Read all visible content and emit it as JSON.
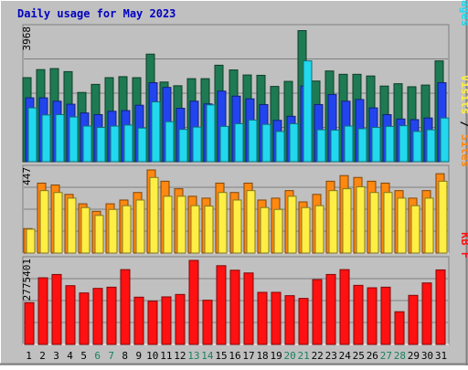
{
  "title": "Daily usage for May 2023",
  "chart_data": [
    {
      "type": "bar",
      "panel": "hits-files-pages",
      "max_label": "3968",
      "ylim": [
        0,
        3968
      ],
      "right_label": [
        "Pages",
        "/",
        "Files",
        "/",
        "Hits"
      ],
      "categories": [
        "1",
        "2",
        "3",
        "4",
        "5",
        "6",
        "7",
        "8",
        "9",
        "10",
        "11",
        "12",
        "13",
        "14",
        "15",
        "16",
        "17",
        "18",
        "19",
        "20",
        "21",
        "22",
        "23",
        "24",
        "25",
        "26",
        "27",
        "28",
        "29",
        "30",
        "31"
      ],
      "series": [
        {
          "name": "Hits",
          "color": "#1e7a52",
          "values": [
            2500,
            2740,
            2770,
            2680,
            2060,
            2300,
            2500,
            2530,
            2500,
            3200,
            2370,
            2260,
            2470,
            2470,
            2870,
            2730,
            2580,
            2570,
            2240,
            2390,
            3900,
            2400,
            2700,
            2600,
            2600,
            2550,
            2250,
            2320,
            2230,
            2280,
            3000
          ]
        },
        {
          "name": "Files",
          "color": "#2244ee",
          "values": [
            1900,
            1900,
            1800,
            1710,
            1450,
            1400,
            1500,
            1520,
            1680,
            2350,
            2210,
            1590,
            1800,
            1720,
            2100,
            1950,
            1870,
            1700,
            1230,
            1350,
            2250,
            1700,
            2000,
            1800,
            1850,
            1600,
            1400,
            1270,
            1250,
            1300,
            2350
          ]
        },
        {
          "name": "Pages",
          "color": "#22d8ee",
          "values": [
            1600,
            1390,
            1400,
            1330,
            1060,
            1020,
            1060,
            1090,
            1000,
            1780,
            1190,
            960,
            1030,
            1690,
            1050,
            1130,
            1240,
            1110,
            900,
            1130,
            3000,
            950,
            940,
            1060,
            980,
            1020,
            1050,
            1070,
            900,
            950,
            1300
          ]
        }
      ]
    },
    {
      "type": "bar",
      "panel": "visits-sites",
      "max_label": "447",
      "ylim": [
        0,
        447
      ],
      "right_label": [
        "Sites",
        "/",
        "Visits"
      ],
      "categories": [
        "1",
        "2",
        "3",
        "4",
        "5",
        "6",
        "7",
        "8",
        "9",
        "10",
        "11",
        "12",
        "13",
        "14",
        "15",
        "16",
        "17",
        "18",
        "19",
        "20",
        "21",
        "22",
        "23",
        "24",
        "25",
        "26",
        "27",
        "28",
        "29",
        "30",
        "31"
      ],
      "series": [
        {
          "name": "Visits",
          "color": "#ff8810",
          "values": [
            130,
            372,
            362,
            312,
            262,
            222,
            262,
            282,
            322,
            442,
            382,
            342,
            302,
            292,
            372,
            322,
            372,
            282,
            292,
            332,
            272,
            312,
            382,
            412,
            402,
            382,
            372,
            332,
            292,
            332,
            422
          ]
        },
        {
          "name": "Sites",
          "color": "#ffee44",
          "values": [
            127,
            332,
            322,
            292,
            242,
            200,
            232,
            252,
            282,
            402,
            302,
            302,
            252,
            250,
            322,
            282,
            332,
            242,
            232,
            302,
            242,
            252,
            332,
            342,
            352,
            322,
            322,
            292,
            252,
            292,
            382
          ]
        }
      ]
    },
    {
      "type": "bar",
      "panel": "kbf",
      "max_label": "2775401",
      "ylim": [
        0,
        2775401
      ],
      "right_label": [
        "KB F"
      ],
      "categories": [
        "1",
        "2",
        "3",
        "4",
        "5",
        "6",
        "7",
        "8",
        "9",
        "10",
        "11",
        "12",
        "13",
        "14",
        "15",
        "16",
        "17",
        "18",
        "19",
        "20",
        "21",
        "22",
        "23",
        "24",
        "25",
        "26",
        "27",
        "28",
        "29",
        "30",
        "31"
      ],
      "weekend_days": [
        6,
        7,
        13,
        14,
        20,
        21,
        27,
        28
      ],
      "series": [
        {
          "name": "KB F",
          "color": "#ff1111",
          "values": [
            1380000,
            2200000,
            2310000,
            1940000,
            1700000,
            1850000,
            1890000,
            2470000,
            1560000,
            1430000,
            1570000,
            1650000,
            2775401,
            1460000,
            2600000,
            2450000,
            2360000,
            1720000,
            1720000,
            1610000,
            1520000,
            2140000,
            2310000,
            2470000,
            1950000,
            1870000,
            1890000,
            1080000,
            1620000,
            2030000,
            2460000
          ]
        }
      ]
    }
  ],
  "colors": {
    "background": "#c0c0c0",
    "title": "#0000c0",
    "weekday_tick": "#000000",
    "weekend_tick": "#1a8060"
  }
}
